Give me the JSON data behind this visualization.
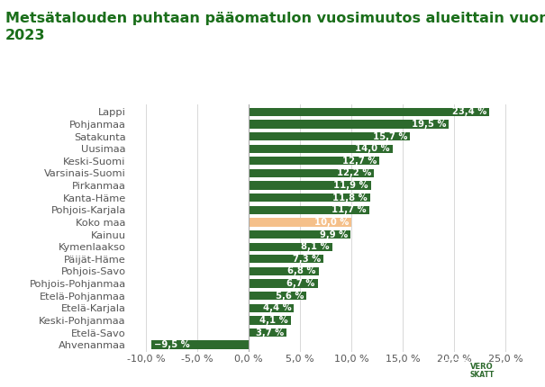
{
  "title_line1": "Metsätalouden puhtaan pääomatulon vuosimuutos alueittain vuonna",
  "title_line2": "2023",
  "categories": [
    "Lappi",
    "Pohjanmaa",
    "Satakunta",
    "Uusimaa",
    "Keski-Suomi",
    "Varsinais-Suomi",
    "Pirkanmaa",
    "Kanta-Häme",
    "Pohjois-Karjala",
    "Koko maa",
    "Kainuu",
    "Kymenlaakso",
    "Päijät-Häme",
    "Pohjois-Savo",
    "Pohjois-Pohjanmaa",
    "Etelä-Pohjanmaa",
    "Etelä-Karjala",
    "Keski-Pohjanmaa",
    "Etelä-Savo",
    "Ahvenanmaa"
  ],
  "values": [
    23.4,
    19.5,
    15.7,
    14.0,
    12.7,
    12.2,
    11.9,
    11.8,
    11.7,
    10.0,
    9.9,
    8.1,
    7.3,
    6.8,
    6.7,
    5.6,
    4.4,
    4.1,
    3.7,
    -9.5
  ],
  "bar_colors": [
    "#2d6a2d",
    "#2d6a2d",
    "#2d6a2d",
    "#2d6a2d",
    "#2d6a2d",
    "#2d6a2d",
    "#2d6a2d",
    "#2d6a2d",
    "#2d6a2d",
    "#f5c08a",
    "#2d6a2d",
    "#2d6a2d",
    "#2d6a2d",
    "#2d6a2d",
    "#2d6a2d",
    "#2d6a2d",
    "#2d6a2d",
    "#2d6a2d",
    "#2d6a2d",
    "#2d6a2d"
  ],
  "label_color": "#ffffff",
  "xlim": [
    -11.5,
    27.0
  ],
  "xticks": [
    -10.0,
    -5.0,
    0.0,
    5.0,
    10.0,
    15.0,
    20.0,
    25.0
  ],
  "xtick_labels": [
    "-10,0 %",
    "-5,0 %",
    "0,0 %",
    "5,0 %",
    "10,0 %",
    "15,0 %",
    "20,0 %",
    "25,0 %"
  ],
  "background_color": "#ffffff",
  "title_color": "#1a6e1a",
  "title_fontsize": 11.5,
  "bar_height": 0.68,
  "grid_color": "#d8d8d8",
  "ytick_color": "#555555",
  "ytick_fontsize": 8.2,
  "xtick_fontsize": 8.0
}
